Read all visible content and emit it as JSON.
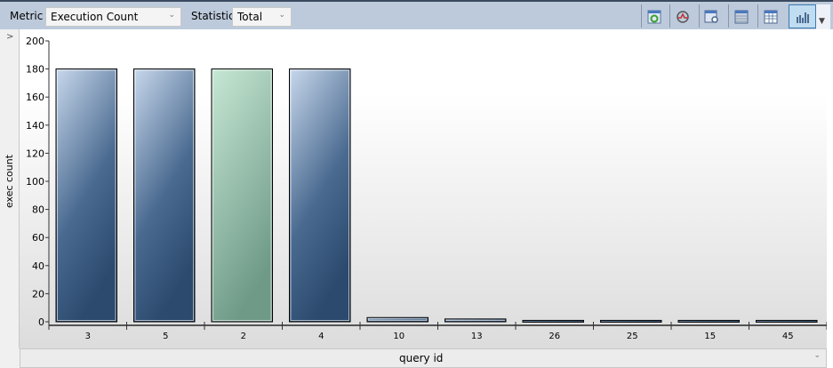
{
  "toolbar": {
    "metric_label": "Metric",
    "metric_value": "Execution Count",
    "statistic_label": "Statistic",
    "statistic_value": "Total",
    "buttons": [
      "refresh-icon",
      "tracking-icon",
      "view-query-icon",
      "grid-view-icon",
      "grid-details-icon",
      "chart-view-icon"
    ]
  },
  "left_panel": {
    "expand_glyph": ">"
  },
  "bottom": {
    "dropdown_value": "query id"
  },
  "colors": {
    "bar_blue_top": "#c8d8ec",
    "bar_blue_bottom": "#2c4a6e",
    "bar_green_top": "#c6e8d4",
    "bar_green_bottom": "#6f9a88",
    "toolbar": "#bccadb"
  },
  "chart_data": {
    "type": "bar",
    "categories": [
      "3",
      "5",
      "2",
      "4",
      "10",
      "13",
      "26",
      "25",
      "15",
      "45"
    ],
    "values": [
      180,
      180,
      180,
      180,
      3,
      2,
      1,
      1,
      1,
      1
    ],
    "highlighted": "2",
    "xlabel": "query id",
    "ylabel": "exec count",
    "ylim": [
      0,
      200
    ],
    "yticks": [
      0,
      20,
      40,
      60,
      80,
      100,
      120,
      140,
      160,
      180,
      200
    ],
    "grid": false
  }
}
